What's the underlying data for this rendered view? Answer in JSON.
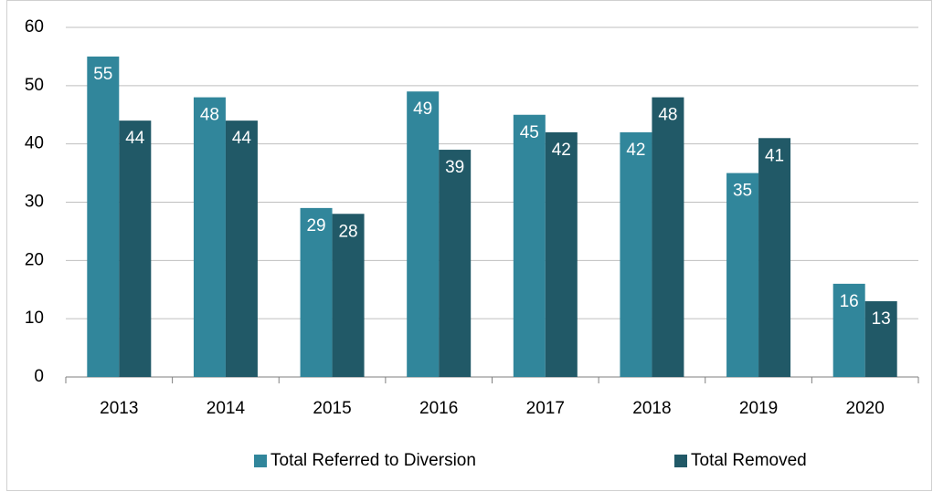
{
  "chart_data": {
    "type": "bar",
    "categories": [
      "2013",
      "2014",
      "2015",
      "2016",
      "2017",
      "2018",
      "2019",
      "2020"
    ],
    "series": [
      {
        "name": "Total Referred to Diversion",
        "color": "#31869b",
        "values": [
          55,
          48,
          29,
          49,
          45,
          42,
          35,
          16
        ]
      },
      {
        "name": "Total Removed",
        "color": "#215967",
        "values": [
          44,
          44,
          28,
          39,
          42,
          48,
          41,
          13
        ]
      }
    ],
    "ylim": [
      0,
      60
    ],
    "yticks": [
      0,
      10,
      20,
      30,
      40,
      50,
      60
    ],
    "grid": true,
    "legend": "bottom",
    "data_labels": true
  }
}
